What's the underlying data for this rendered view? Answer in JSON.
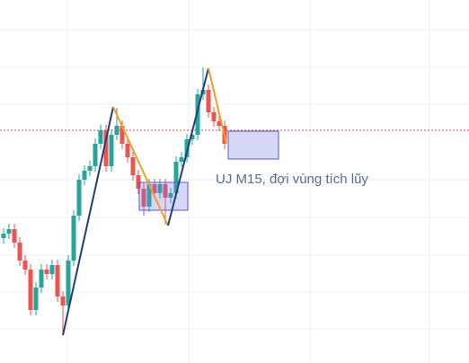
{
  "chart_data": {
    "type": "candlestick",
    "annotation": "UJ M15, đợi vùng tích lũy",
    "up_color": "#26a69a",
    "down_color": "#ef5350",
    "ylim": [
      0,
      404
    ],
    "open": [
      139,
      144,
      149,
      134,
      114,
      104,
      59,
      84,
      104,
      99,
      109,
      74,
      64,
      114,
      164,
      204,
      214,
      219,
      244,
      259,
      219,
      254,
      264,
      244,
      229,
      209,
      194,
      174,
      199,
      189,
      199,
      184,
      189,
      224,
      229,
      249,
      254,
      299,
      304,
      279,
      269,
      264
    ],
    "high": [
      150,
      155,
      155,
      140,
      120,
      110,
      90,
      110,
      110,
      115,
      115,
      80,
      120,
      170,
      210,
      220,
      225,
      250,
      265,
      265,
      260,
      284,
      270,
      250,
      235,
      215,
      200,
      205,
      205,
      205,
      205,
      195,
      230,
      235,
      255,
      260,
      305,
      329,
      310,
      285,
      275,
      270
    ],
    "low": [
      133,
      138,
      128,
      108,
      98,
      53,
      53,
      78,
      93,
      93,
      68,
      34,
      58,
      108,
      158,
      198,
      208,
      213,
      238,
      213,
      213,
      248,
      238,
      223,
      203,
      188,
      164,
      168,
      183,
      183,
      154,
      178,
      183,
      218,
      223,
      243,
      248,
      293,
      273,
      263,
      258,
      238
    ],
    "close": [
      144,
      149,
      134,
      114,
      104,
      59,
      84,
      104,
      99,
      109,
      74,
      64,
      114,
      164,
      204,
      214,
      219,
      244,
      259,
      219,
      254,
      264,
      244,
      229,
      209,
      194,
      174,
      199,
      189,
      199,
      184,
      189,
      224,
      229,
      249,
      254,
      299,
      304,
      279,
      269,
      264,
      244
    ]
  }
}
